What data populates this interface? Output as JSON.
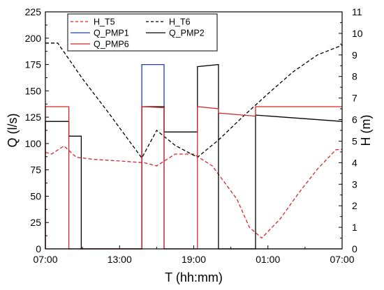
{
  "chart_data": {
    "type": "line",
    "title": "",
    "xlabel": "T (hh:mm)",
    "ylabel_left": "Q (l/s)",
    "ylabel_right": "H (m)",
    "xlim": [
      0,
      24
    ],
    "ylim_left": [
      0,
      225
    ],
    "ylim_right": [
      0,
      11
    ],
    "x_ticks": [
      0,
      6,
      12,
      18,
      24
    ],
    "x_tick_labels": [
      "07:00",
      "13:00",
      "19:00",
      "01:00",
      "07:00"
    ],
    "y_left_ticks": [
      "0",
      "25",
      "50",
      "75",
      "100",
      "125",
      "150",
      "175",
      "200",
      "225"
    ],
    "y_right_ticks": [
      "0",
      "1",
      "2",
      "3",
      "4",
      "5",
      "6",
      "7",
      "8",
      "9",
      "10",
      "11"
    ],
    "grid": false,
    "legend_position": "top-left",
    "x_units": "hours after 07:00",
    "series": [
      {
        "name": "H_T5",
        "axis": "right",
        "color": "#d62728",
        "dash": "dashed",
        "x": [
          0,
          0.5,
          1.5,
          2.5,
          4,
          6,
          8,
          9,
          10.5,
          12,
          13.5,
          15.5,
          16.5,
          17.5,
          19,
          20.5,
          22,
          23.5,
          24
        ],
        "y": [
          4.48,
          4.4,
          4.78,
          4.25,
          4.15,
          4.08,
          4.0,
          3.85,
          4.4,
          4.4,
          3.85,
          2.3,
          1.0,
          0.5,
          1.4,
          2.6,
          3.7,
          4.6,
          4.62
        ]
      },
      {
        "name": "H_T6",
        "axis": "right",
        "color": "#000000",
        "dash": "dashed",
        "x": [
          0,
          1,
          3,
          5,
          7.8,
          9,
          10.5,
          12.3,
          14,
          16,
          18,
          20,
          22,
          24
        ],
        "y": [
          9.55,
          9.55,
          7.9,
          6.4,
          4.22,
          5.5,
          4.8,
          4.25,
          5.05,
          6.15,
          7.2,
          8.2,
          9.0,
          9.45
        ]
      },
      {
        "name": "Q_PMP1",
        "axis": "left",
        "color": "#1f3ea8",
        "dash": "solid",
        "x": [
          0,
          7.8,
          7.8,
          9.6,
          9.6,
          24
        ],
        "y": [
          0,
          0,
          175,
          175,
          0,
          0
        ]
      },
      {
        "name": "Q_PMP2",
        "axis": "left",
        "color": "#000000",
        "dash": "solid",
        "x": [
          0,
          0,
          1.9,
          1.9,
          2.9,
          2.9,
          7.8,
          7.8,
          9.6,
          9.6,
          12.3,
          12.3,
          14,
          14,
          17,
          17,
          24
        ],
        "y": [
          0,
          121,
          121,
          107,
          107,
          0,
          0,
          135,
          135,
          111,
          111,
          173,
          175,
          0,
          0,
          127,
          121
        ]
      },
      {
        "name": "Q_PMP6",
        "axis": "left",
        "color": "#d62728",
        "dash": "solid",
        "x": [
          0,
          0,
          1.9,
          1.9,
          7.8,
          7.8,
          9.6,
          9.6,
          12.3,
          12.3,
          14,
          14,
          17,
          17,
          24
        ],
        "y": [
          0,
          135,
          135,
          0,
          0,
          135,
          134,
          0,
          0,
          135,
          133,
          129,
          126,
          135,
          135
        ]
      }
    ]
  }
}
